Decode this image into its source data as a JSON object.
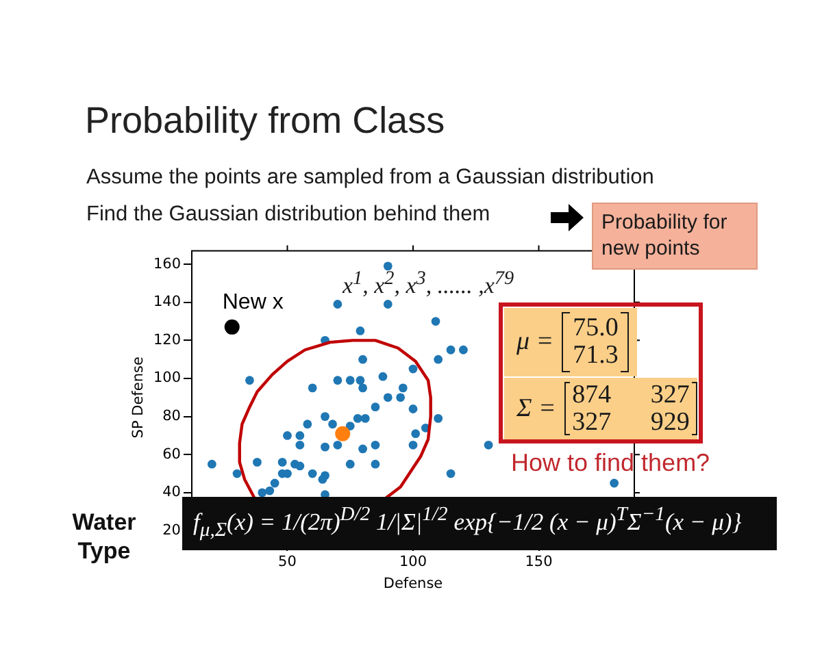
{
  "chart_data": {
    "type": "scatter",
    "title": "Probability from Class",
    "subtitle": "Assume the points are sampled from a Gaussian distribution",
    "xlabel": "Defense",
    "ylabel": "SP Defense",
    "xlim": [
      12,
      188
    ],
    "ylim": [
      13,
      167
    ],
    "xticks": [
      50,
      100,
      150
    ],
    "yticks": [
      20,
      40,
      60,
      80,
      100,
      120,
      140,
      160
    ],
    "marker": "circle",
    "annotations": [
      "Find the Gaussian distribution behind them",
      "Probability for new points",
      "x$^{1}$, x$^{2}$, x$^{3}$, ...... ,x$^{79}$",
      "μ =",
      "75.0",
      "71.3",
      "Σ =",
      "874 327",
      "327 929",
      "How to find them?",
      "f$_{μ,Σ}$(x) = 1/(2π)$^{D/2}$ 1/|Σ|$^{1/2}$ exp{−1/2 (x − μ)$^{T}$Σ$^{−1}$(x − μ)}",
      "Water Type"
    ],
    "series": [
      {
        "color": "#1f77b4",
        "x": [
          70,
          65,
          35,
          60,
          70,
          75,
          90,
          90,
          109,
          79,
          115,
          120,
          80,
          110,
          100,
          79,
          88,
          80,
          96,
          90,
          95,
          85,
          100,
          65,
          58,
          68,
          50,
          55,
          55,
          65,
          70,
          20,
          30,
          38,
          48,
          53,
          55,
          60,
          65,
          64,
          45,
          48,
          50,
          40,
          43,
          65,
          75,
          78,
          81,
          110,
          105,
          101,
          80,
          85,
          100,
          130,
          85,
          115,
          180,
          75
        ],
        "values": [
          139,
          120,
          99,
          95,
          99,
          99,
          159,
          139,
          130,
          125,
          115,
          115,
          110,
          110,
          105,
          99,
          101,
          95,
          95,
          90,
          90,
          85,
          84,
          80,
          76,
          76,
          70,
          70,
          65,
          64,
          65,
          55,
          50,
          56,
          56,
          55,
          54,
          50,
          49,
          47,
          45,
          50,
          50,
          40,
          41,
          39,
          55,
          79,
          79,
          79,
          74,
          71,
          63,
          65,
          65,
          65,
          55,
          50,
          45,
          75
        ]
      },
      {
        "type": "line",
        "marker": "none",
        "color": "#c00000",
        "x": [
          37,
          33,
          31,
          31,
          32,
          35,
          38,
          44,
          50,
          57,
          67,
          76,
          85,
          94,
          101,
          106,
          107,
          107,
          106,
          103,
          99,
          95,
          89
        ],
        "values": [
          37,
          47,
          56,
          66,
          76,
          85,
          93,
          102,
          109,
          115,
          119,
          120,
          120,
          116,
          109,
          99,
          90,
          80,
          68,
          59,
          51,
          43,
          37
        ]
      },
      {
        "color": "#ff7f0e",
        "x": [
          72
        ],
        "values": [
          71
        ]
      },
      {
        "name": "New x",
        "color": "#000000",
        "x": [
          28
        ],
        "values": [
          127
        ]
      }
    ]
  }
}
